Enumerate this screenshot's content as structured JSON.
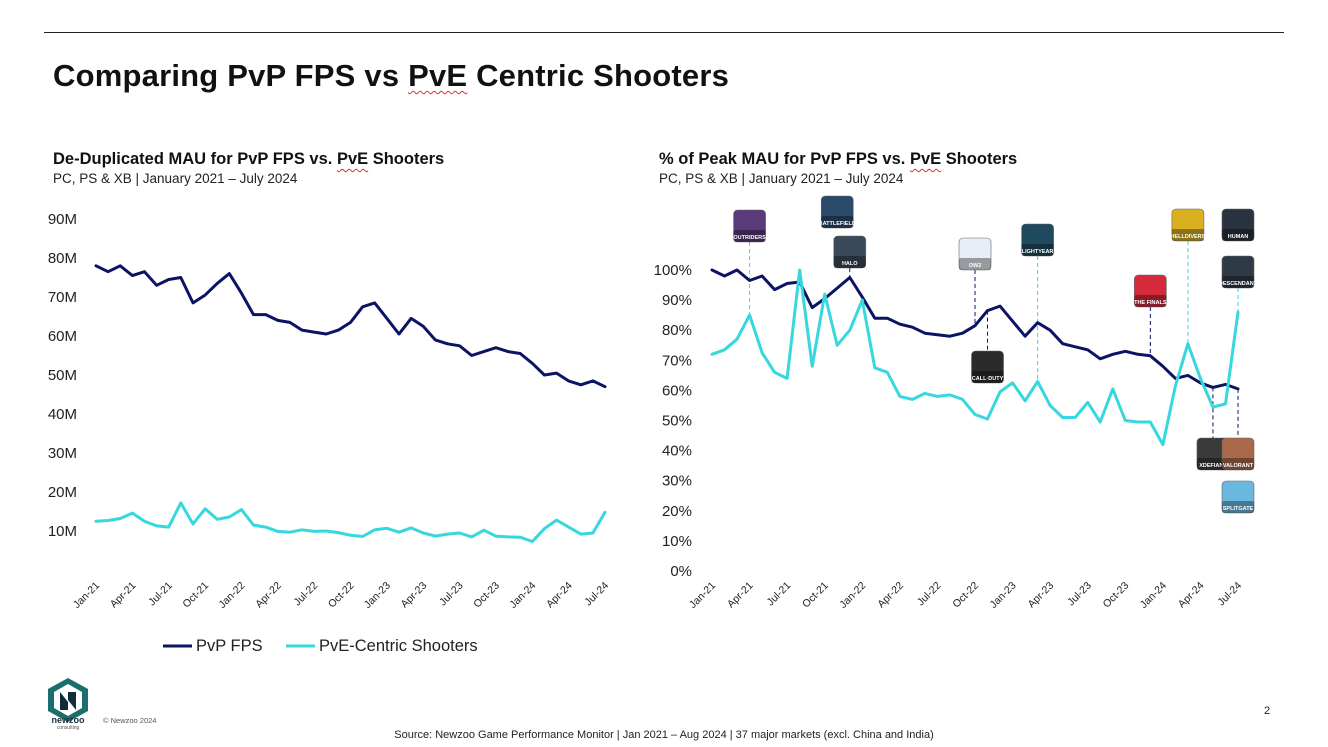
{
  "page": {
    "title_pre": "Comparing PvP FPS vs ",
    "title_mark": "PvE",
    "title_post": " Centric Shooters",
    "copyright": "© Newzoo 2024",
    "page_number": "2",
    "source": "Source: Newzoo Game Performance Monitor | Jan 2021 – Aug 2024 | 37 major markets (excl. China and India)",
    "logo": {
      "name": "newzoo",
      "sub": "consulting",
      "icon": "newzoo-logo-icon"
    }
  },
  "colors": {
    "pvp": "#0b1464",
    "pve": "#36d7de",
    "guide_pvp": "#0b1464",
    "guide_pve": "#36d7de"
  },
  "legend": {
    "pvp": "PvP FPS",
    "pve": "PvE-Centric Shooters"
  },
  "chart_data": [
    {
      "type": "line",
      "title_pre": "De-Duplicated MAU for PvP FPS vs. ",
      "title_mark": "PvE",
      "title_post": " Shooters",
      "subtitle": "PC, PS & XB | January 2021 – July 2024",
      "ylim": [
        0,
        90
      ],
      "yticks": [
        10,
        20,
        30,
        40,
        50,
        60,
        70,
        80,
        90
      ],
      "ytick_labels": [
        "10M",
        "20M",
        "30M",
        "40M",
        "50M",
        "60M",
        "70M",
        "80M",
        "90M"
      ],
      "xtick_labels": [
        "Jan-21",
        "Apr-21",
        "Jul-21",
        "Oct-21",
        "Jan-22",
        "Apr-22",
        "Jul-22",
        "Oct-22",
        "Jan-23",
        "Apr-23",
        "Jul-23",
        "Oct-23",
        "Jan-24",
        "Apr-24",
        "Jul-24"
      ],
      "series": [
        {
          "name": "PvP FPS",
          "key": "pvp",
          "values": [
            78,
            76.5,
            78,
            75.5,
            76.5,
            73,
            74.5,
            75,
            68.5,
            70.5,
            73.5,
            76,
            71,
            65.5,
            65.5,
            64,
            63.5,
            61.5,
            61,
            60.5,
            61.5,
            63.5,
            67.5,
            68.5,
            64.5,
            60.5,
            64.5,
            62.5,
            59,
            58,
            57.5,
            55,
            56,
            57,
            56,
            55.5,
            53,
            50,
            50.5,
            48.5,
            47.5,
            48.5,
            47
          ]
        },
        {
          "name": "PvE-Centric Shooters",
          "key": "pve",
          "values": [
            12.5,
            12.7,
            13.2,
            14.6,
            12.5,
            11.3,
            11.0,
            17.2,
            11.8,
            15.7,
            13.0,
            13.6,
            15.5,
            11.5,
            11.0,
            9.9,
            9.7,
            10.3,
            9.9,
            10.0,
            9.6,
            8.9,
            8.6,
            10.3,
            10.7,
            9.7,
            10.8,
            9.5,
            8.7,
            9.2,
            9.5,
            8.5,
            10.2,
            8.7,
            8.5,
            8.4,
            7.3,
            10.6,
            12.8,
            11.0,
            9.2,
            9.5,
            14.8
          ]
        }
      ]
    },
    {
      "type": "line",
      "title_pre": "% of Peak MAU for PvP FPS vs. ",
      "title_mark": "PvE",
      "title_post": " Shooters",
      "subtitle": "PC, PS & XB | January 2021 – July 2024",
      "ylim": [
        0,
        100
      ],
      "yticks": [
        0,
        10,
        20,
        30,
        40,
        50,
        60,
        70,
        80,
        90,
        100
      ],
      "ytick_labels": [
        "0%",
        "10%",
        "20%",
        "30%",
        "40%",
        "50%",
        "60%",
        "70%",
        "80%",
        "90%",
        "100%"
      ],
      "xtick_labels": [
        "Jan-21",
        "Apr-21",
        "Jul-21",
        "Oct-21",
        "Jan-22",
        "Apr-22",
        "Jul-22",
        "Oct-22",
        "Jan-23",
        "Apr-23",
        "Jul-23",
        "Oct-23",
        "Jan-24",
        "Apr-24",
        "Jul-24"
      ],
      "series": [
        {
          "name": "PvP FPS",
          "key": "pvp",
          "values": [
            100,
            98,
            100,
            96.5,
            98,
            93.5,
            95.5,
            96,
            87.5,
            90.5,
            94,
            97.5,
            91,
            84,
            84,
            82,
            81,
            79,
            78.5,
            78,
            79,
            81.5,
            86.5,
            88,
            83,
            78,
            82.5,
            80,
            75.5,
            74.5,
            73.5,
            70.5,
            72,
            73,
            72,
            71.5,
            68,
            64,
            65,
            62.5,
            61,
            62,
            60.5
          ]
        },
        {
          "name": "PvE-Centric Shooters",
          "key": "pve",
          "values": [
            72,
            73.5,
            77,
            85,
            72.5,
            66,
            64,
            100,
            68,
            92,
            75,
            80,
            90,
            67.5,
            66,
            58,
            57,
            59,
            58,
            58.5,
            57,
            52,
            50.5,
            59.5,
            62.5,
            56.5,
            63,
            55,
            51,
            51,
            56,
            49.5,
            60.5,
            50,
            49.5,
            49.5,
            42,
            61.5,
            75.5,
            64,
            54.5,
            55.5,
            86
          ]
        }
      ],
      "annotations": [
        {
          "game": "Outriders",
          "label": "OUTRIDERS",
          "icon": "outriders-icon",
          "index": 3,
          "series": "pve",
          "side": "above",
          "bg": "#5a3a78"
        },
        {
          "game": "Battlefield 2042",
          "label": "BATTLEFIELD",
          "icon": "battlefield-2042-icon",
          "index": 10,
          "series": "pvp",
          "side": "above",
          "stack": 1,
          "bg": "#2a4a6a"
        },
        {
          "game": "Halo Infinite",
          "label": "HALO",
          "icon": "halo-infinite-icon",
          "index": 11,
          "series": "pvp",
          "side": "above",
          "bg": "#3a4a5a"
        },
        {
          "game": "Overwatch 2",
          "label": "OW2",
          "icon": "overwatch-2-icon",
          "index": 21,
          "series": "pvp",
          "side": "above",
          "bg": "#e8eef6"
        },
        {
          "game": "Call of Duty: Warzone 2.0",
          "label": "CALL·DUTY",
          "icon": "call-of-duty-icon",
          "index": 22,
          "series": "pvp",
          "side": "below",
          "bg": "#2b2b2b"
        },
        {
          "game": "Lightyear Frontier",
          "label": "LIGHTYEAR",
          "icon": "lightyear-icon",
          "index": 26,
          "series": "pve",
          "side": "above",
          "bg": "#1f4a5e"
        },
        {
          "game": "The Finals",
          "label": "THE FINALS",
          "icon": "the-finals-icon",
          "index": 35,
          "series": "pvp",
          "side": "above",
          "bg": "#d42a3a"
        },
        {
          "game": "Helldivers 2",
          "label": "HELLDIVERS",
          "icon": "helldivers-2-icon",
          "index": 38,
          "series": "pve",
          "side": "above",
          "bg": "#d9b020"
        },
        {
          "game": "XDefiant",
          "label": "XDEFIANT",
          "icon": "xdefiant-icon",
          "index": 40,
          "series": "pvp",
          "side": "below",
          "bg": "#3a3a3a"
        },
        {
          "game": "Once Human",
          "label": "HUMAN",
          "icon": "once-human-icon",
          "index": 42,
          "series": "pve",
          "side": "above",
          "stack": 1,
          "bg": "#2a3440"
        },
        {
          "game": "The First Descendant",
          "label": "DESCENDANT",
          "icon": "first-descendant-icon",
          "index": 42,
          "series": "pve",
          "side": "above",
          "bg": "#2e3a46"
        },
        {
          "game": "Valorant",
          "label": "VALORANT",
          "icon": "valorant-icon",
          "index": 42,
          "series": "pvp",
          "side": "below",
          "bg": "#a86a4a"
        },
        {
          "game": "Splitgate",
          "label": "SPLITGATE",
          "icon": "splitgate-icon",
          "index": 42,
          "series": "pvp",
          "side": "below",
          "stack": 1,
          "bg": "#6ab8e0"
        }
      ]
    }
  ]
}
